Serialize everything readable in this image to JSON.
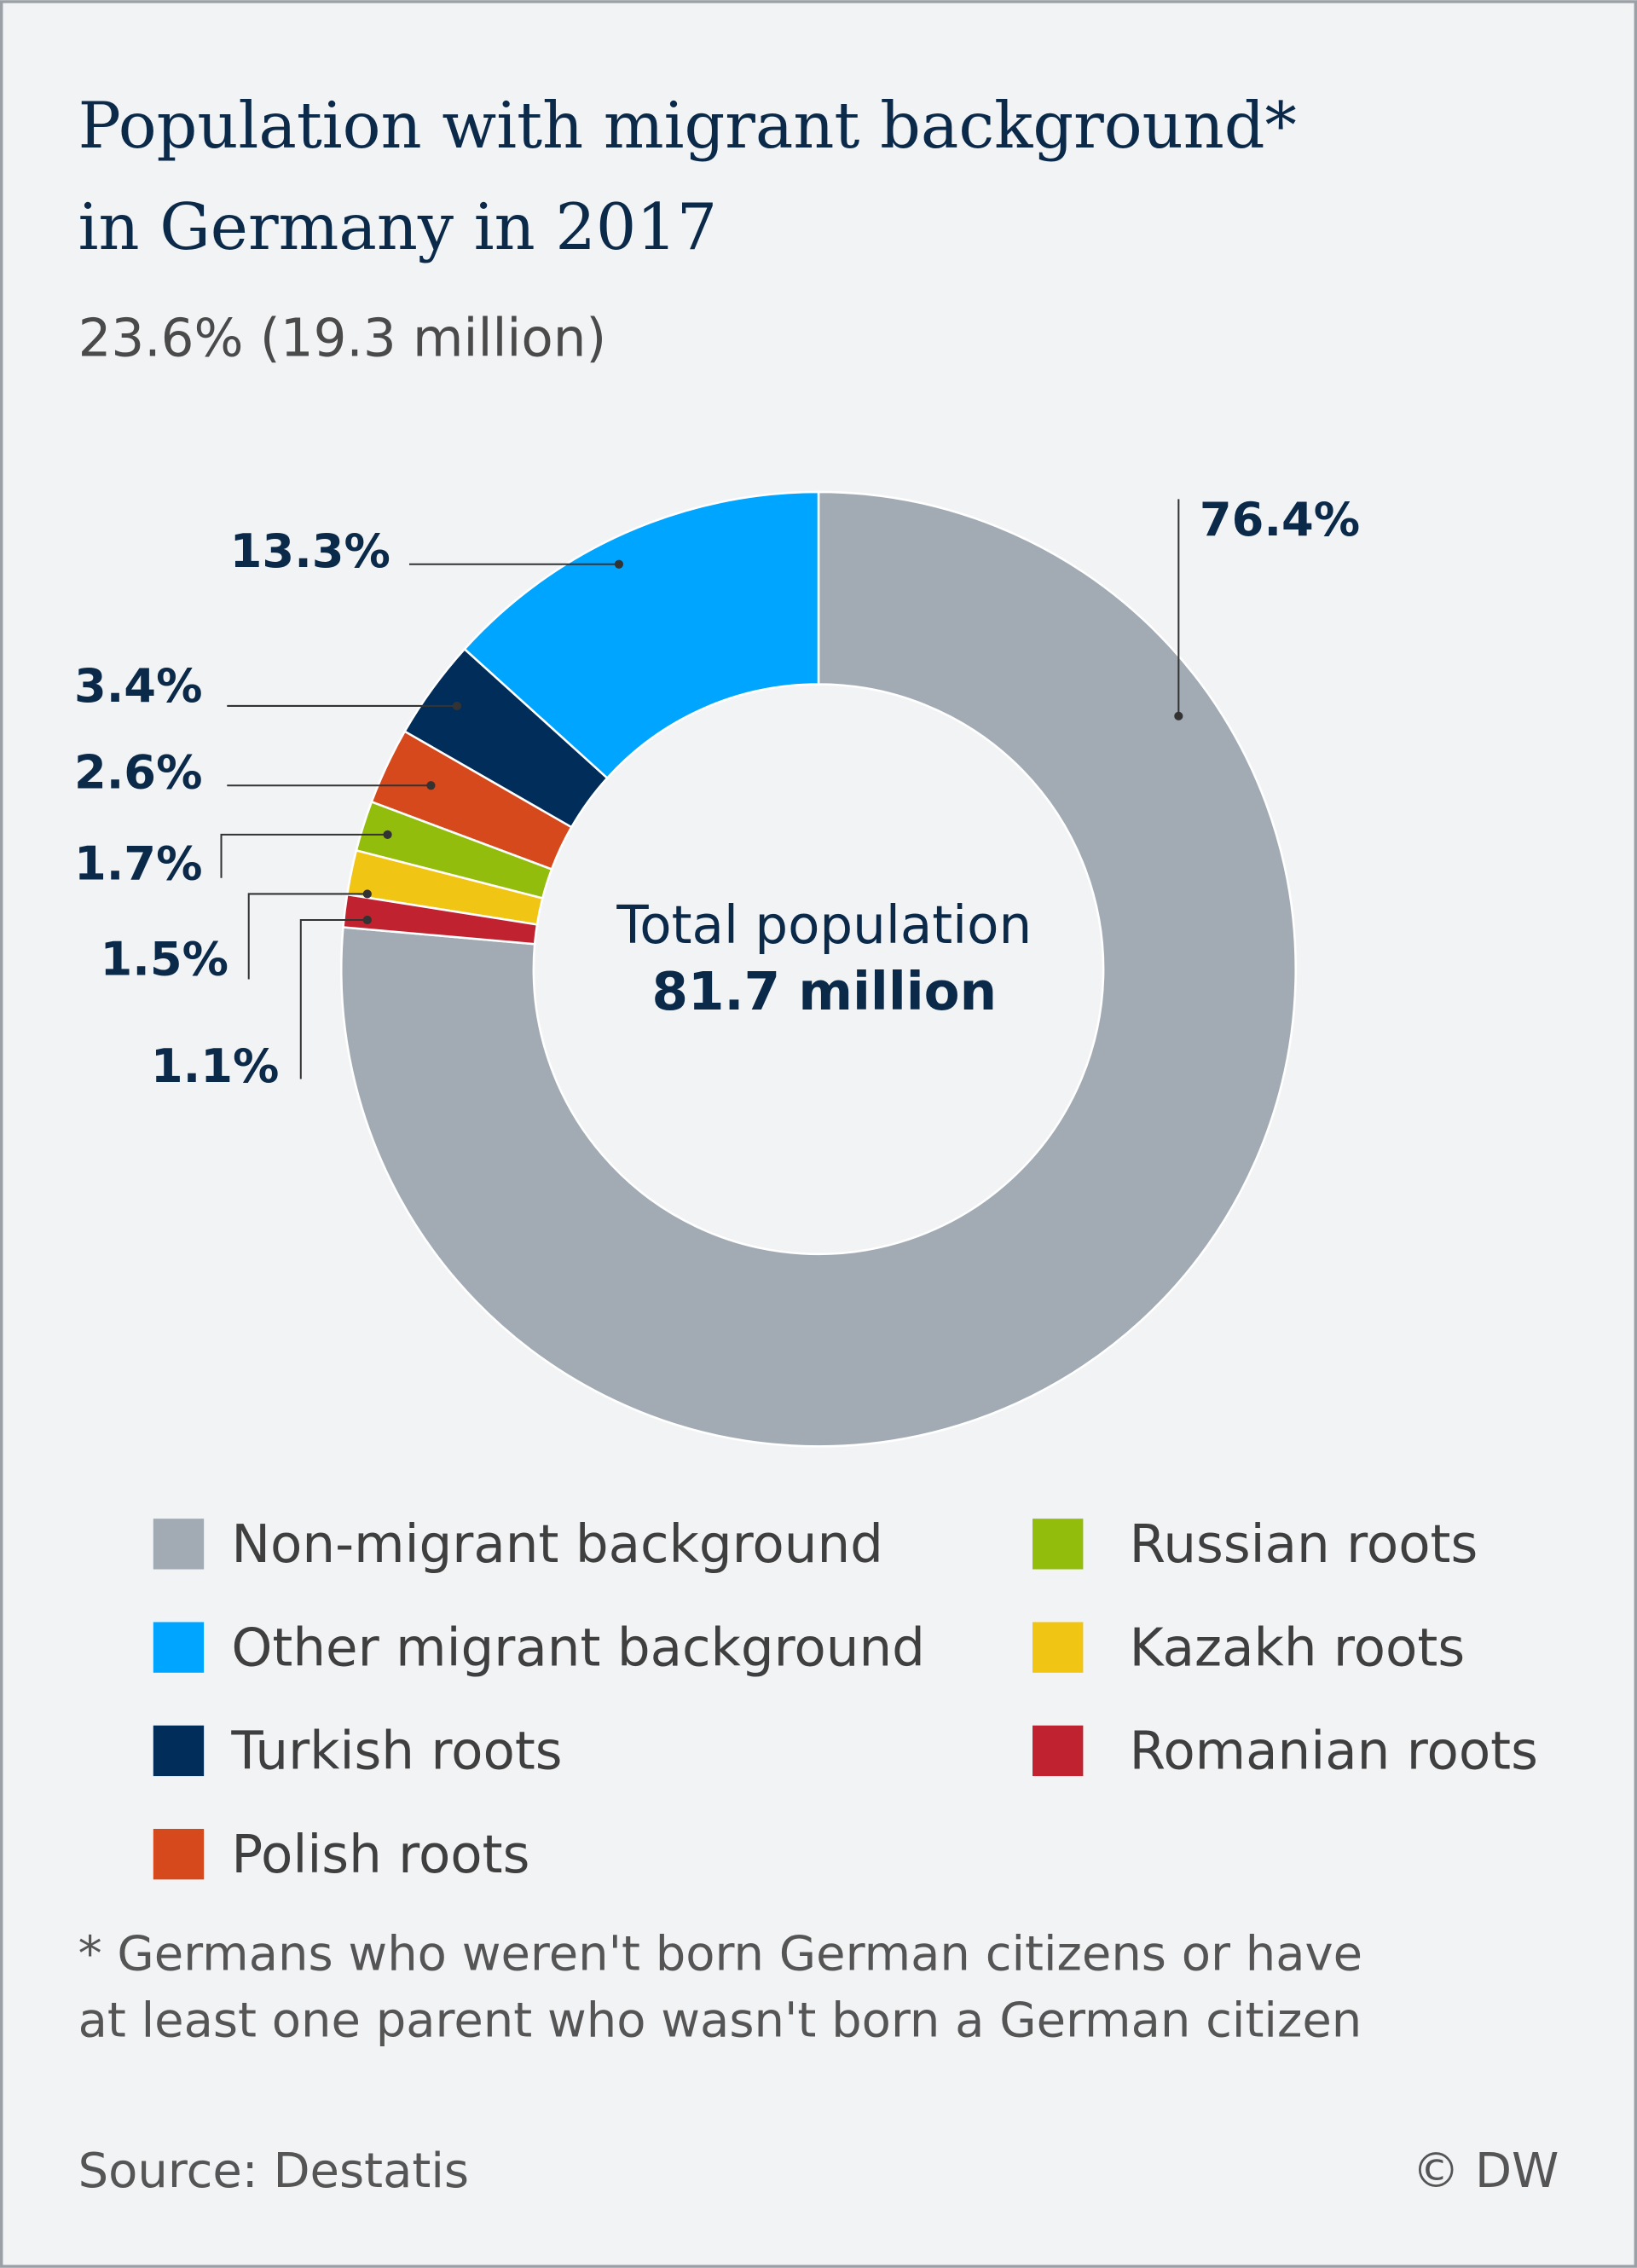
{
  "chart_data": {
    "type": "donut",
    "title": [
      "Population with migrant background*",
      "in Germany in 2017"
    ],
    "subtitle": "23.6% (19.3 million)",
    "center_label": "Total population",
    "center_value": "81.7 million",
    "categories": [
      "Non-migrant background",
      "Other migrant background",
      "Turkish roots",
      "Polish roots",
      "Russian roots",
      "Kazakh roots",
      "Romanian roots"
    ],
    "values": [
      76.4,
      13.3,
      3.4,
      2.6,
      1.7,
      1.5,
      1.1
    ],
    "value_labels": [
      "76.4%",
      "13.3%",
      "3.4%",
      "2.6%",
      "1.7%",
      "1.5%",
      "1.1%"
    ],
    "colors": [
      "#a2abb4",
      "#00a5ff",
      "#002d5a",
      "#d6491c",
      "#93bd0c",
      "#f0c514",
      "#c1222f"
    ],
    "footnote": [
      "* Germans who weren't born German citizens or have",
      "at least one parent who wasn't born a German citizen"
    ],
    "source": "Source: Destatis",
    "credit": "© DW"
  }
}
